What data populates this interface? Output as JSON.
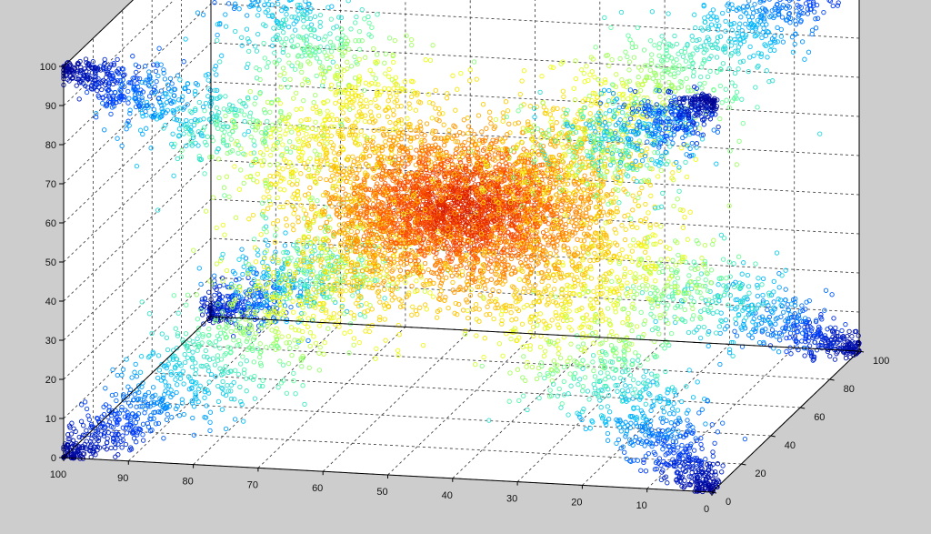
{
  "chart_data": {
    "type": "scatter",
    "title": "",
    "xlabel": "",
    "ylabel": "",
    "zlabel": "",
    "xlim": [
      0,
      100
    ],
    "ylim": [
      0,
      100
    ],
    "zlim": [
      0,
      100
    ],
    "grid": true,
    "colormap": "jet",
    "colormap_stops": [
      "#00008f",
      "#0040ff",
      "#00c0ff",
      "#60ffa0",
      "#f0ff10",
      "#ffc000",
      "#ff5000",
      "#c00000"
    ],
    "background": "#cdcdcd",
    "axes_background": "#ffffff",
    "x_ticks": [
      "0",
      "10",
      "20",
      "30",
      "40",
      "50",
      "60",
      "70",
      "80",
      "90",
      "100"
    ],
    "y_ticks": [
      "0",
      "20",
      "40",
      "60",
      "80",
      "100"
    ],
    "z_ticks": [
      "0",
      "10",
      "20",
      "30",
      "40",
      "50",
      "60",
      "70",
      "80",
      "90",
      "100"
    ],
    "structure": {
      "center": [
        50,
        50,
        50
      ],
      "arm_endpoints": [
        [
          0,
          0,
          0
        ],
        [
          100,
          0,
          0
        ],
        [
          0,
          100,
          0
        ],
        [
          100,
          100,
          0
        ],
        [
          0,
          0,
          100
        ],
        [
          100,
          0,
          100
        ],
        [
          0,
          100,
          100
        ],
        [
          100,
          100,
          100
        ]
      ],
      "arm_points_each": 1100,
      "core_points": 1600,
      "color_value": "proximity to center (1 at center, 0 at corners)"
    }
  }
}
